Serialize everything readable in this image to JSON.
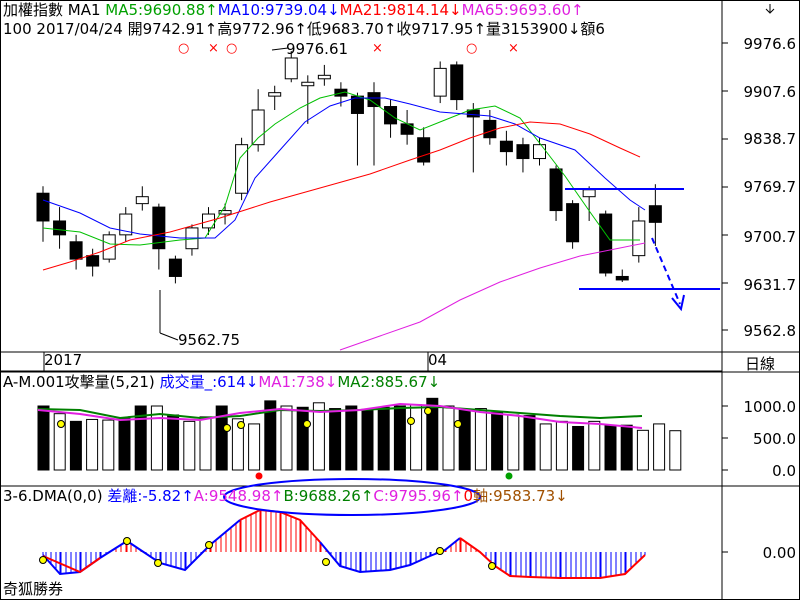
{
  "app": {
    "brand": "奇狐勝券"
  },
  "main": {
    "header_line1": [
      {
        "text": "加權指數 MA1 ",
        "color": "#000000"
      },
      {
        "text": "MA5:9690.88↑",
        "color": "#00a000"
      },
      {
        "text": "MA10:9739.04↓",
        "color": "#0000ff"
      },
      {
        "text": "MA21:9814.14↓",
        "color": "#ff0000"
      },
      {
        "text": "MA65:9693.60↑",
        "color": "#e020e0"
      }
    ],
    "header_line2": "100 2017/04/24 開9742.91↑高9772.96↑低9683.70↑收9717.95↑量3153900↓額6",
    "marks": [
      {
        "text": "○",
        "x": 178,
        "y": 40,
        "color": "#ff0000"
      },
      {
        "text": "×",
        "x": 208,
        "y": 40,
        "color": "#ff0000"
      },
      {
        "text": "○",
        "x": 226,
        "y": 40,
        "color": "#ff0000"
      },
      {
        "text": "○",
        "x": 466,
        "y": 40,
        "color": "#ff0000"
      },
      {
        "text": "×",
        "x": 508,
        "y": 40,
        "color": "#ff0000"
      },
      {
        "text": "×",
        "x": 372,
        "y": 40,
        "color": "#ff0000"
      }
    ],
    "high_label": "9976.61",
    "low_label": "9562.75",
    "price_ticks": [
      "9976.6",
      "9907.6",
      "9838.7",
      "9769.7",
      "9700.7",
      "9631.7",
      "9562.8"
    ],
    "date_labels": [
      {
        "text": "2017",
        "x": 44
      },
      {
        "text": "04",
        "x": 428
      }
    ],
    "corner_label": "日線"
  },
  "volume": {
    "header": [
      {
        "text": "A-M.001攻擊量(5,21) ",
        "color": "#000000"
      },
      {
        "text": "成交量_:614↓",
        "color": "#0000ff"
      },
      {
        "text": "MA1:738↓",
        "color": "#e020e0"
      },
      {
        "text": "MA2:885.67↓",
        "color": "#008000"
      }
    ],
    "ticks": [
      "1000.0",
      "500.0",
      "0.0"
    ]
  },
  "dma": {
    "header": [
      {
        "text": "3-6.DMA(0,0) ",
        "color": "#000000"
      },
      {
        "text": "差離:-5.82↑",
        "color": "#0000ff"
      },
      {
        "text": "A:9548.98↑",
        "color": "#e020e0"
      },
      {
        "text": "B:9688.26↑",
        "color": "#008000"
      },
      {
        "text": "C:9795.96↑",
        "color": "#e020e0"
      },
      {
        "text": "0",
        "color": "#ff0000"
      },
      {
        "text": "軸:9583.73↓",
        "color": "#a05000"
      }
    ],
    "ticks": [
      "0.00"
    ]
  },
  "colors": {
    "up": "#ff0000",
    "down": "#000000",
    "ma5": "#00c000",
    "ma10": "#0000ff",
    "ma21": "#ff0000",
    "ma65": "#e020e0",
    "annot": "#0000ff"
  }
}
